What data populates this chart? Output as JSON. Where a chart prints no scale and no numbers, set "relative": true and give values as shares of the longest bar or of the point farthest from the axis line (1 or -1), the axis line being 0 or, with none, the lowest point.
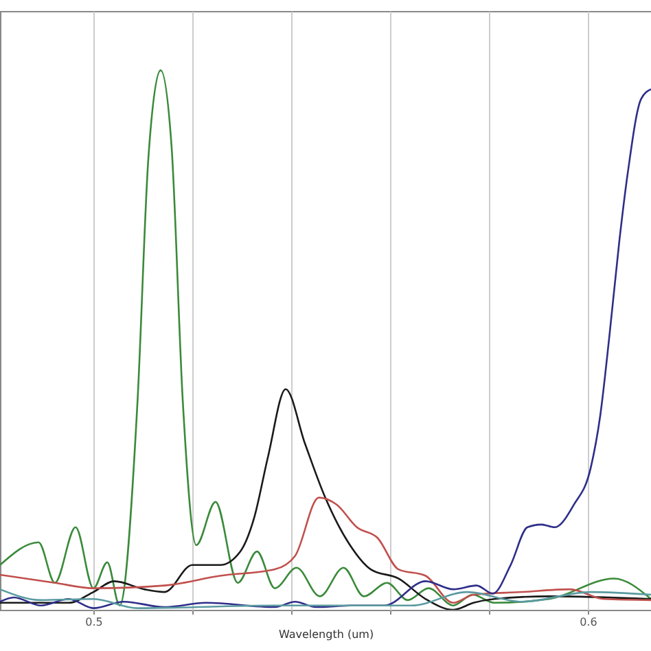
{
  "chart_data": {
    "type": "line",
    "xlabel": "Wavelength (um)",
    "relative": true,
    "xlim": [
      0.4811,
      0.6128
    ],
    "xticks": [
      0.5,
      {
        "value": 0.52,
        "label": null
      },
      {
        "value": 0.54,
        "label": null
      },
      {
        "value": 0.56,
        "label": null
      },
      {
        "value": 0.58,
        "label": null
      },
      0.6
    ],
    "grid": "x",
    "tick_labels": "x",
    "series": [
      {
        "color": "#3a8a3a",
        "x": [
          0.4811,
          0.4889,
          0.4922,
          0.4964,
          0.5,
          0.5028,
          0.5053,
          0.5089,
          0.5111,
          0.5136,
          0.5158,
          0.5181,
          0.5208,
          0.5247,
          0.5292,
          0.5331,
          0.5367,
          0.5411,
          0.5458,
          0.5506,
          0.5547,
          0.5594,
          0.5636,
          0.5678,
          0.5728,
          0.5767,
          0.5811,
          0.5922,
          0.6053,
          0.6128
        ],
        "values": [
          0.083,
          0.125,
          0.05,
          0.153,
          0.04,
          0.088,
          0.008,
          0.383,
          0.835,
          1,
          0.86,
          0.383,
          0.12,
          0.2,
          0.05,
          0.108,
          0.04,
          0.078,
          0.025,
          0.078,
          0.025,
          0.05,
          0.018,
          0.04,
          0.008,
          0.028,
          0.013,
          0.02,
          0.058,
          0.02
        ]
      },
      {
        "color": "#1a1a1a",
        "x": [
          0.4811,
          0.495,
          0.5,
          0.5042,
          0.5103,
          0.5144,
          0.52,
          0.5256,
          0.5297,
          0.5325,
          0.5353,
          0.5389,
          0.5428,
          0.5469,
          0.5519,
          0.5561,
          0.5617,
          0.5672,
          0.5728,
          0.5769,
          0.5811,
          0.5922,
          0.6128
        ],
        "values": [
          0.013,
          0.013,
          0.033,
          0.053,
          0.038,
          0.033,
          0.083,
          0.083,
          0.108,
          0.17,
          0.283,
          0.409,
          0.308,
          0.208,
          0.12,
          0.075,
          0.058,
          0.02,
          0,
          0.013,
          0.02,
          0.025,
          0.02
        ]
      },
      {
        "color": "#c0504d",
        "x": [
          0.4811,
          0.4922,
          0.5,
          0.5144,
          0.5256,
          0.5367,
          0.5408,
          0.5456,
          0.5492,
          0.5533,
          0.5575,
          0.5617,
          0.5672,
          0.5728,
          0.5769,
          0.5867,
          0.5964,
          0.6033,
          0.6128
        ],
        "values": [
          0.065,
          0.05,
          0.04,
          0.045,
          0.063,
          0.075,
          0.1,
          0.208,
          0.195,
          0.153,
          0.133,
          0.075,
          0.063,
          0.013,
          0.028,
          0.033,
          0.038,
          0.02,
          0.018
        ]
      },
      {
        "color": "#2e2e8a",
        "x": [
          0.4811,
          0.4839,
          0.4894,
          0.495,
          0.5,
          0.5061,
          0.5144,
          0.5228,
          0.5367,
          0.5408,
          0.545,
          0.5525,
          0.5589,
          0.5672,
          0.5728,
          0.5775,
          0.5808,
          0.5844,
          0.5878,
          0.5906,
          0.5933,
          0.5972,
          0.6006,
          0.6025,
          0.6044,
          0.6064,
          0.6081,
          0.6108,
          0.6128
        ],
        "values": [
          0.015,
          0.023,
          0.008,
          0.02,
          0.003,
          0.015,
          0.005,
          0.013,
          0.005,
          0.015,
          0.005,
          0.008,
          0.008,
          0.053,
          0.038,
          0.045,
          0.03,
          0.083,
          0.153,
          0.158,
          0.153,
          0.195,
          0.263,
          0.358,
          0.509,
          0.684,
          0.81,
          0.947,
          0.965
        ]
      },
      {
        "color": "#5a9aa0",
        "x": [
          0.4811,
          0.4894,
          0.5,
          0.5089,
          0.5367,
          0.5644,
          0.5756,
          0.5867,
          0.6006,
          0.6128
        ],
        "values": [
          0.038,
          0.018,
          0.02,
          0.003,
          0.008,
          0.008,
          0.033,
          0.015,
          0.033,
          0.028
        ]
      }
    ]
  }
}
